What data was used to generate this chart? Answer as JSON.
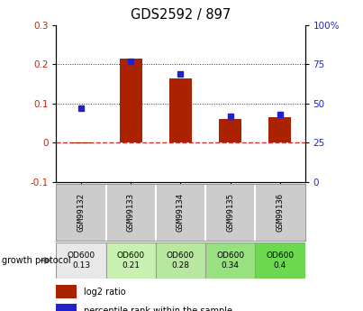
{
  "title": "GDS2592 / 897",
  "samples": [
    "GSM99132",
    "GSM99133",
    "GSM99134",
    "GSM99135",
    "GSM99136"
  ],
  "log2_ratio": [
    -0.002,
    0.215,
    0.163,
    0.06,
    0.065
  ],
  "percentile_rank": [
    47,
    77,
    69,
    42,
    43
  ],
  "ylim_left": [
    -0.1,
    0.3
  ],
  "ylim_right": [
    0,
    100
  ],
  "yticks_left": [
    -0.1,
    0.0,
    0.1,
    0.2,
    0.3
  ],
  "yticks_right": [
    0,
    25,
    50,
    75,
    100
  ],
  "bar_color": "#aa2200",
  "dot_color": "#2222cc",
  "zero_line_color": "#cc3333",
  "dotted_line_color": "#333333",
  "growth_protocol_labels": [
    "OD600\n0.13",
    "OD600\n0.21",
    "OD600\n0.28",
    "OD600\n0.34",
    "OD600\n0.4"
  ],
  "cell_colors_gp": [
    "#e8e8e8",
    "#c8f0b0",
    "#b8e8a0",
    "#98e080",
    "#6cd850"
  ],
  "cell_color_sample": "#cccccc",
  "fig_width": 4.03,
  "fig_height": 3.45,
  "dpi": 100
}
